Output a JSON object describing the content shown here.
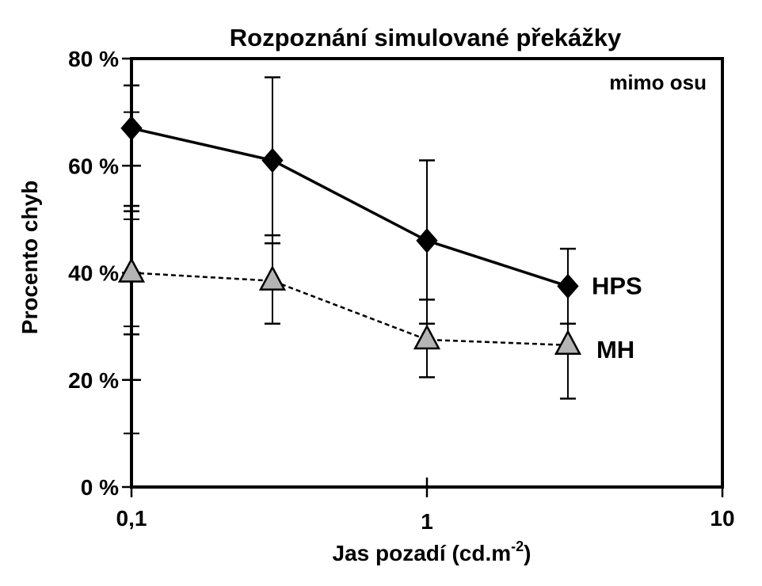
{
  "chart_data": {
    "type": "line",
    "title": "Rozpoznání simulované překážky",
    "annotation": "mimo osu",
    "xlabel": "Jas pozadí  (cd.m",
    "xlabel_sup": "-2",
    "xlabel_end": ")",
    "ylabel": "Procento chyb",
    "x_scale": "log",
    "xlim": [
      0.1,
      10
    ],
    "ylim": [
      0,
      80
    ],
    "x_ticks": [
      0.1,
      1,
      10
    ],
    "x_tick_labels": [
      "0,1",
      "1",
      "10"
    ],
    "y_ticks": [
      0,
      20,
      40,
      60,
      80
    ],
    "y_tick_labels": [
      "0 %",
      "20 %",
      "40 %",
      "60 %",
      "80 %"
    ],
    "grid": false,
    "legend": "labels at end of lines (right)",
    "series": [
      {
        "name": "HPS",
        "marker": "diamond",
        "line_style": "solid",
        "color": "#000000",
        "x": [
          0.1,
          0.3,
          1,
          3
        ],
        "y": [
          67,
          61,
          46,
          37.5
        ],
        "err_low": [
          52.5,
          45.5,
          30.5,
          30.5
        ],
        "err_high": [
          75,
          76.5,
          61,
          44.5
        ]
      },
      {
        "name": "MH",
        "marker": "triangle",
        "line_style": "dashed",
        "color": "#b4b4b4",
        "x": [
          0.1,
          0.3,
          1,
          3
        ],
        "y": [
          40,
          38.5,
          27.5,
          26.5
        ],
        "err_low": [
          28.5,
          30.5,
          20.5,
          16.5
        ],
        "err_high": [
          51.5,
          47,
          35,
          30.5
        ]
      }
    ]
  }
}
